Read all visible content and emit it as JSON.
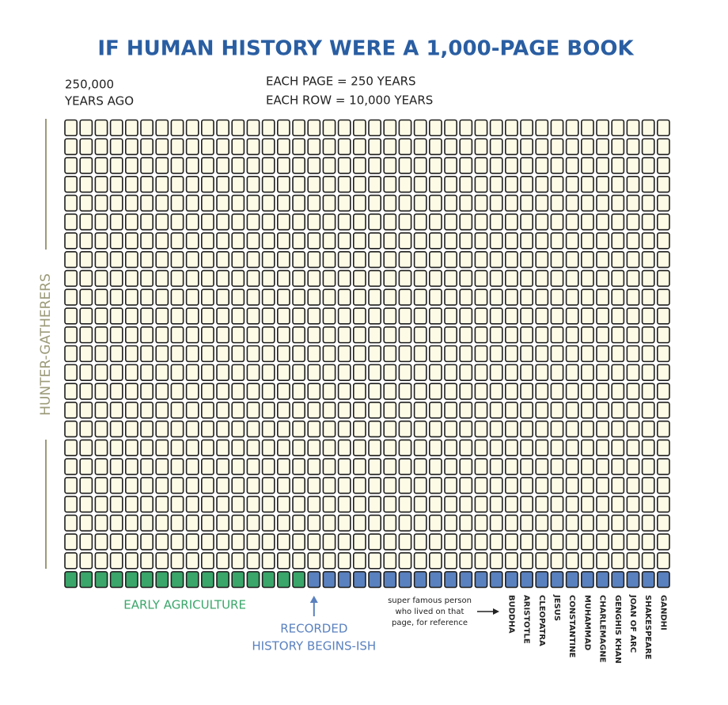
{
  "header": {
    "title": "IF HUMAN HISTORY WERE A 1,000-PAGE BOOK",
    "start_label": [
      "250,000",
      "YEARS AGO"
    ],
    "scale_lines": [
      "EACH PAGE = 250 YEARS",
      "EACH ROW = 10,000 YEARS"
    ]
  },
  "grid": {
    "rows": 25,
    "columns": 40,
    "page_color": "#fdfbe6",
    "side_label": "HUNTER-GATHERERS",
    "side_color": "#9c9b7a",
    "last_row_groups": [
      {
        "label": [
          "EARLY AGRICULTURE"
        ],
        "count": 16,
        "color": "#3aa66a"
      },
      {
        "label": [
          "RECORDED",
          "HISTORY BEGINS-ISH"
        ],
        "count": 24,
        "color": "#5a81bf"
      }
    ]
  },
  "people": {
    "note": [
      "super famous person",
      "who lived on that",
      "page, for reference"
    ],
    "names": [
      "BUDDHA",
      "ARISTOTLE",
      "CLEOPATRA",
      "JESUS",
      "CONSTANTINE",
      "MUHAMMAD",
      "CHARLEMAGNE",
      "GENGHIS KHAN",
      "JOAN OF ARC",
      "SHAKESPEARE",
      "GANDHI"
    ]
  }
}
